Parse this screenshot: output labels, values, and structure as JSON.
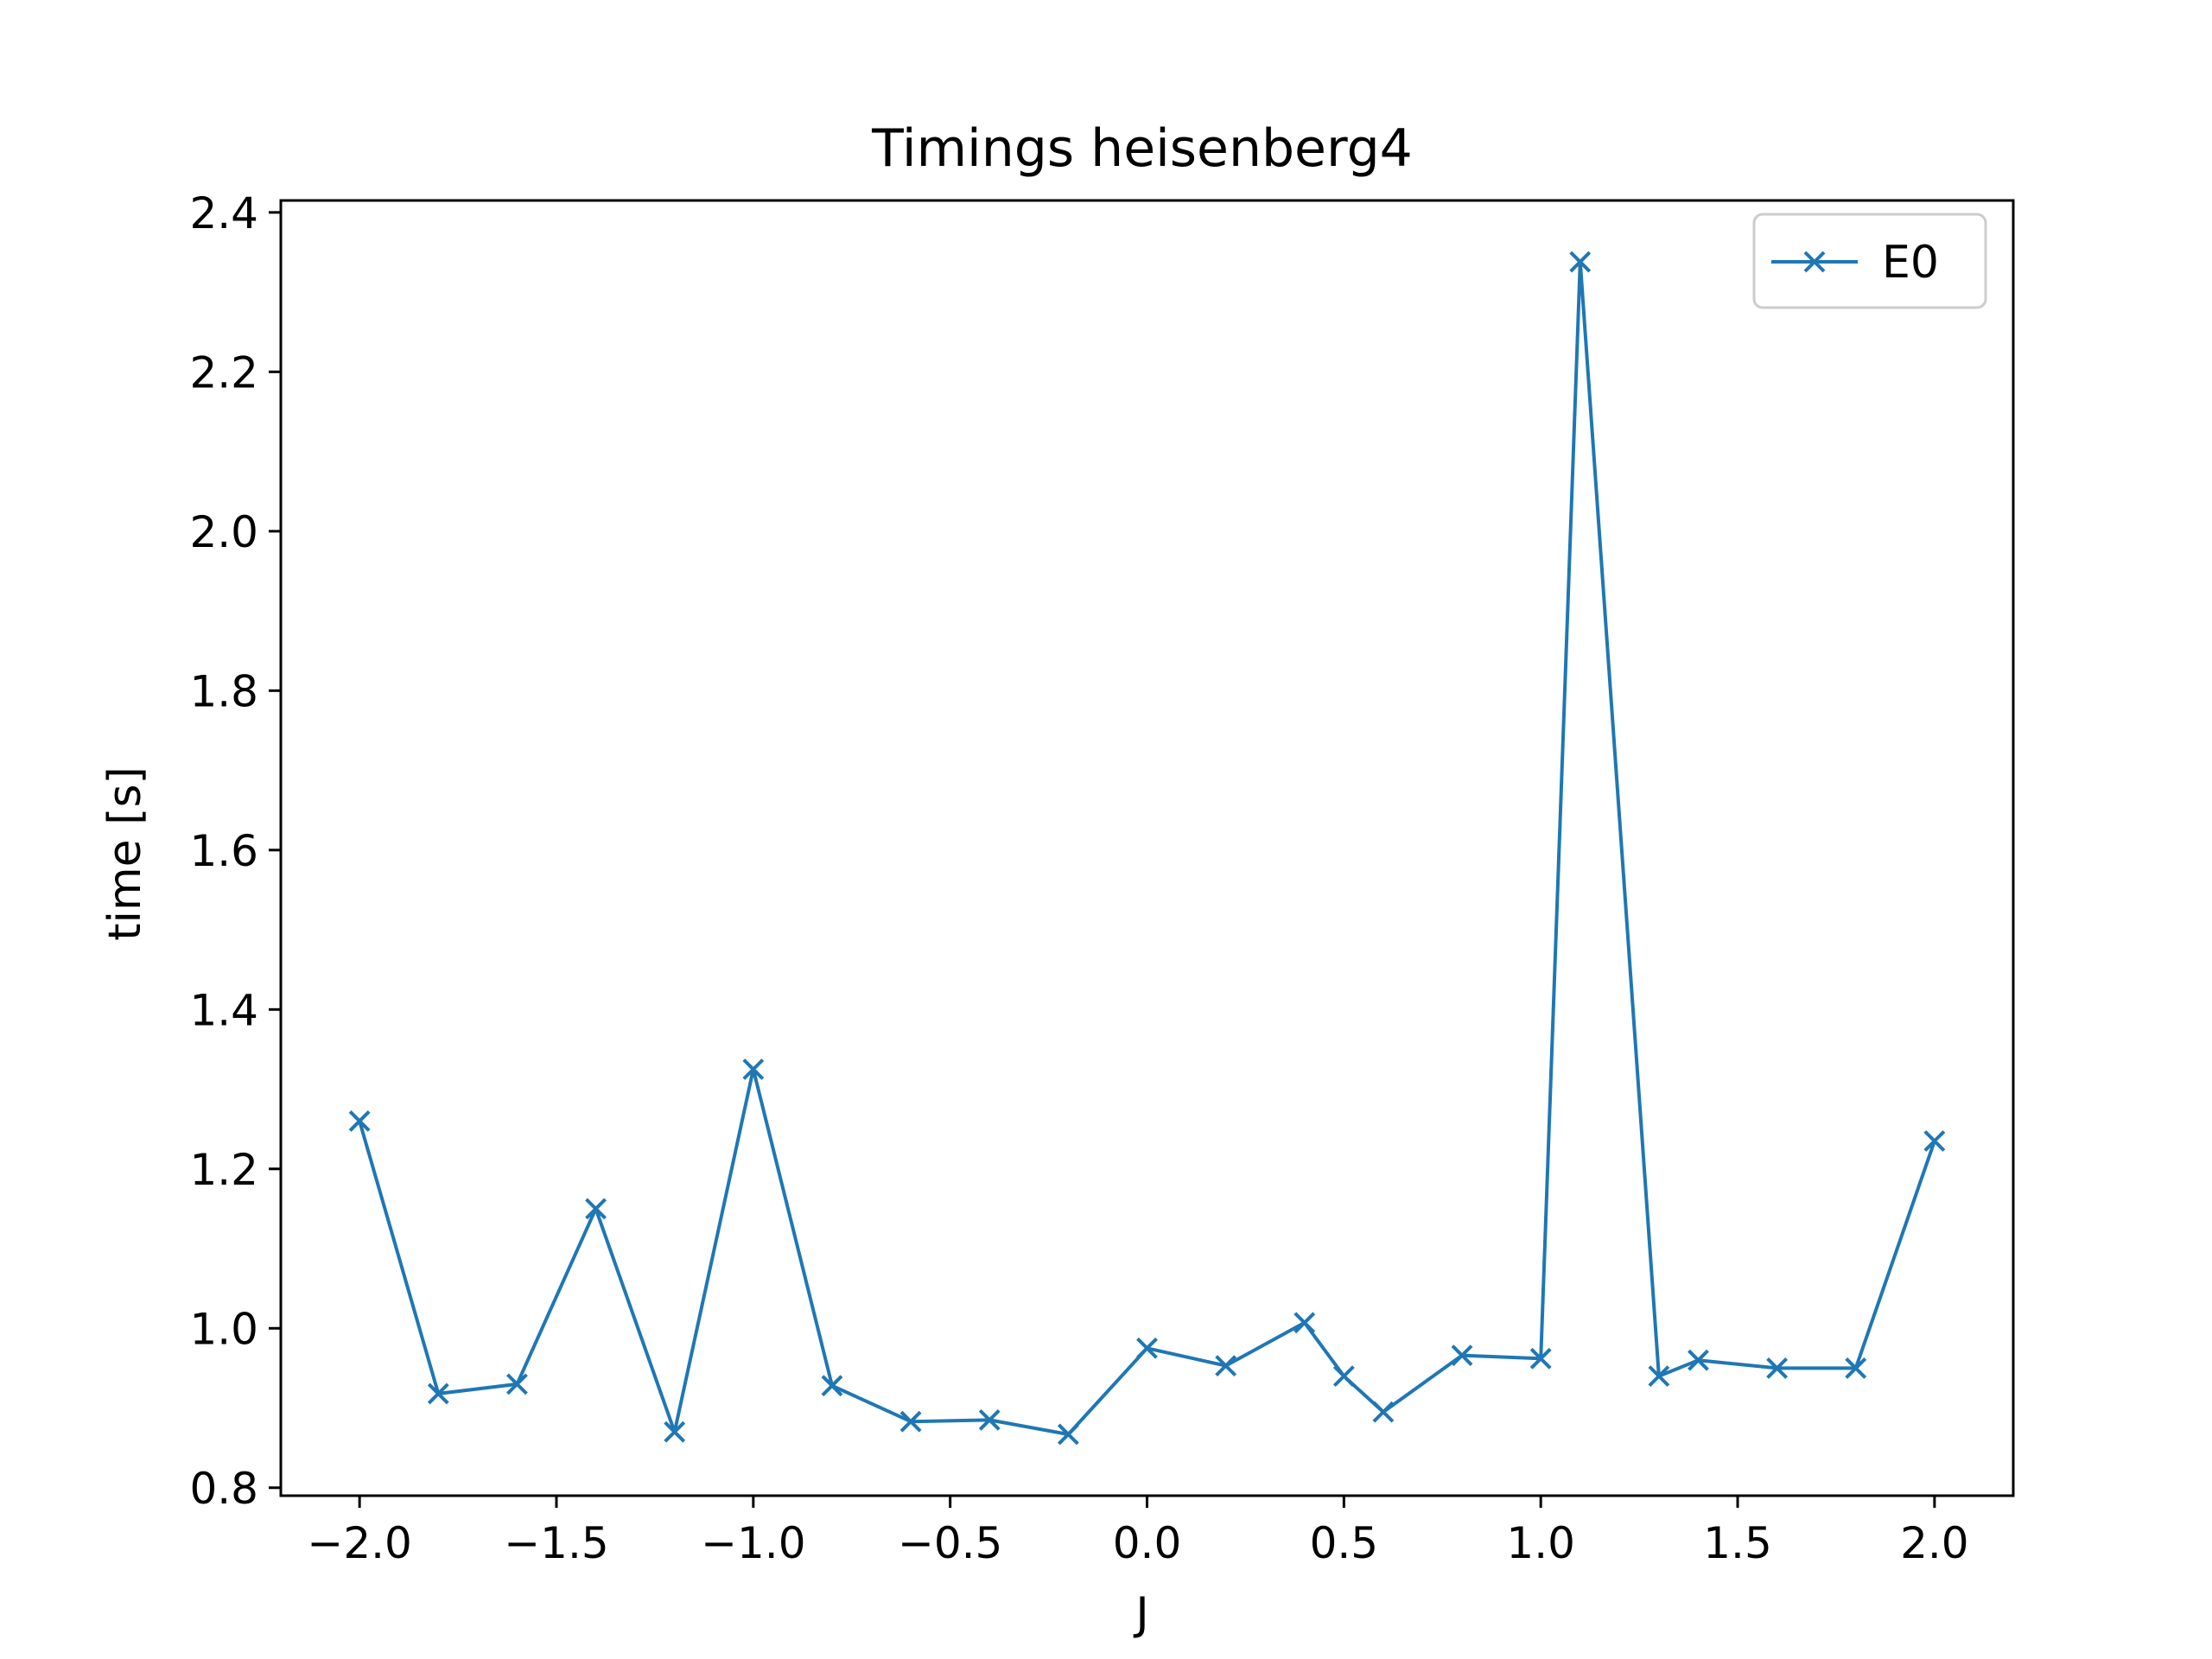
{
  "chart_data": {
    "type": "line",
    "title": "Timings heisenberg4",
    "xlabel": "J",
    "ylabel": "time [s]",
    "xlim": [
      -2.2,
      2.2
    ],
    "ylim": [
      0.79,
      2.415
    ],
    "xticks": [
      -2.0,
      -1.5,
      -1.0,
      -0.5,
      0.0,
      0.5,
      1.0,
      1.5,
      2.0
    ],
    "xtick_labels": [
      "−2.0",
      "−1.5",
      "−1.0",
      "−0.5",
      "0.0",
      "0.5",
      "1.0",
      "1.5",
      "2.0"
    ],
    "yticks": [
      0.8,
      1.0,
      1.2,
      1.4,
      1.6,
      1.8,
      2.0,
      2.2,
      2.4
    ],
    "ytick_labels": [
      "0.8",
      "1.0",
      "1.2",
      "1.4",
      "1.6",
      "1.8",
      "2.0",
      "2.2",
      "2.4"
    ],
    "grid": false,
    "legend_position": "top-right",
    "series": [
      {
        "name": "E0",
        "color": "#1f77b4",
        "marker": "x",
        "x": [
          -2.0,
          -1.8,
          -1.6,
          -1.4,
          -1.2,
          -1.0,
          -0.8,
          -0.6,
          -0.4,
          -0.2,
          0.0,
          0.2,
          0.4,
          0.5,
          0.6,
          0.8,
          1.0,
          1.1,
          1.3,
          1.4,
          1.6,
          1.8,
          2.0
        ],
        "y": [
          1.26,
          0.918,
          0.93,
          1.15,
          0.87,
          1.325,
          0.928,
          0.883,
          0.885,
          0.867,
          0.975,
          0.953,
          1.007,
          0.94,
          0.895,
          0.966,
          0.962,
          2.338,
          0.94,
          0.96,
          0.95,
          0.95,
          1.235
        ]
      }
    ]
  }
}
